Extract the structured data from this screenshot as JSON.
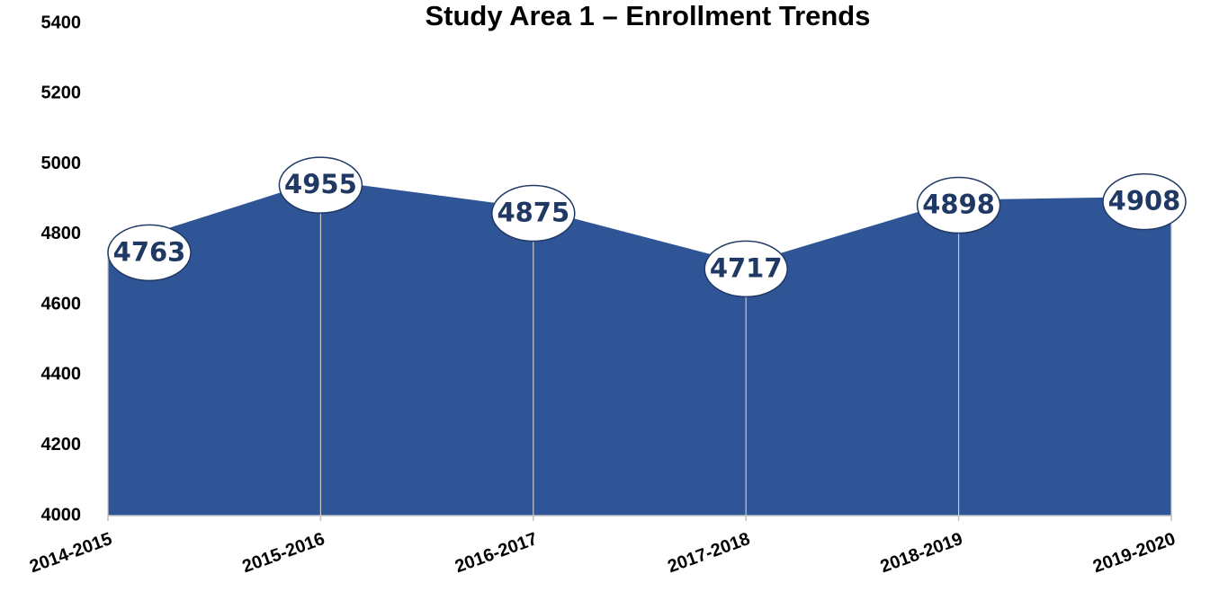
{
  "chart_data": {
    "type": "area",
    "title": "Study Area 1 – Enrollment Trends",
    "categories": [
      "2014-2015",
      "2015-2016",
      "2016-2017",
      "2017-2018",
      "2018-2019",
      "2019-2020"
    ],
    "values": [
      4763,
      4955,
      4875,
      4717,
      4898,
      4908
    ],
    "color": "#2f5597",
    "ylim": [
      4000,
      5400
    ],
    "yticks": [
      4000,
      4200,
      4400,
      4600,
      4800,
      5000,
      5200,
      5400
    ],
    "grid": false
  }
}
